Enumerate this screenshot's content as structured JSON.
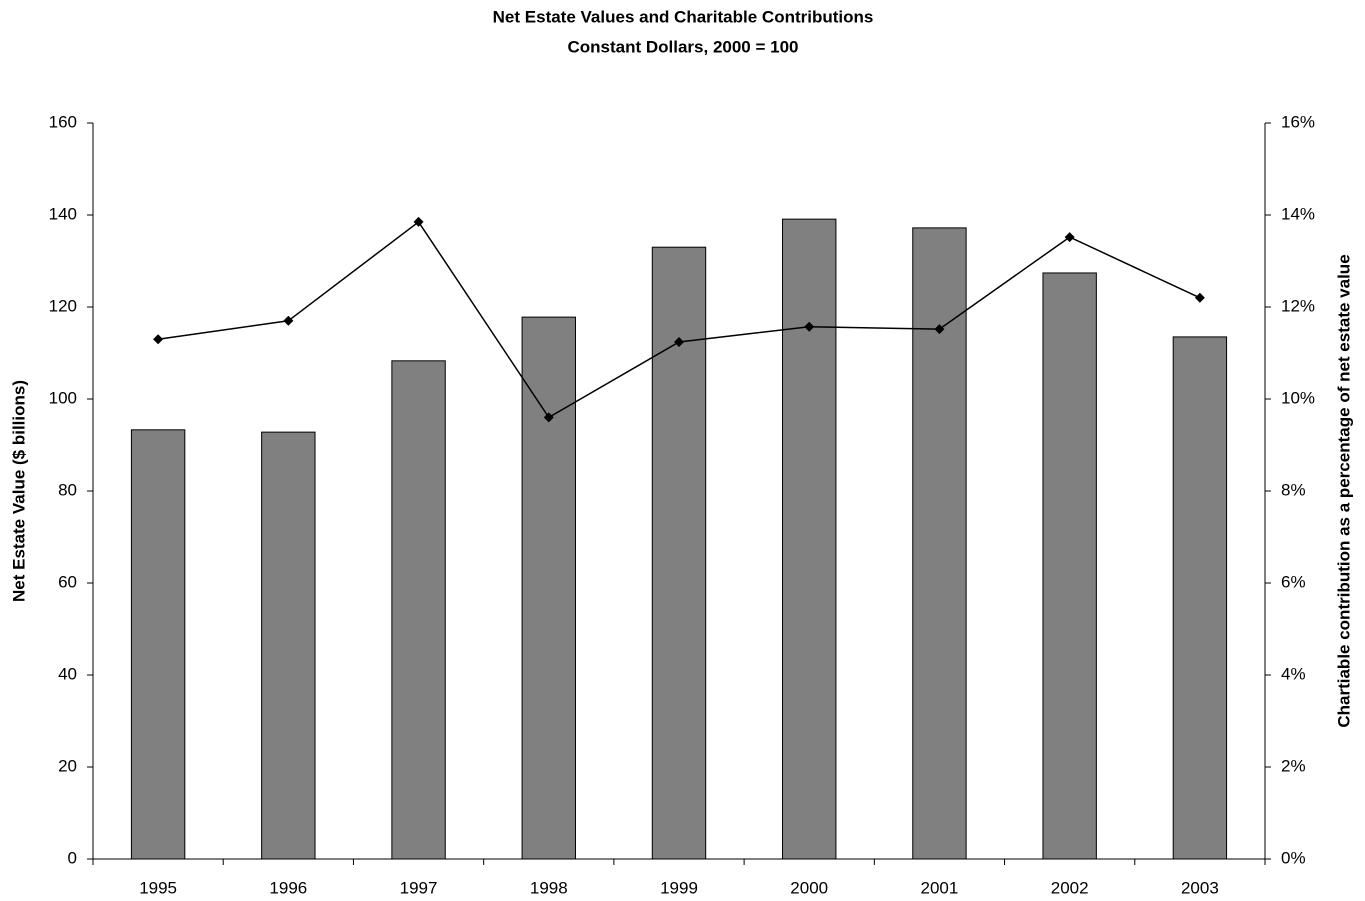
{
  "chart_data": {
    "type": "bar_line",
    "title": "Net Estate Values and Charitable Contributions",
    "subtitle": "Constant Dollars, 2000 = 100",
    "ylabel": "Net Estate Value ($ billions)",
    "y2label": "Chartiable contribution as a percentage of net estate value",
    "categories": [
      "1995",
      "1996",
      "1997",
      "1998",
      "1999",
      "2000",
      "2001",
      "2002",
      "2003"
    ],
    "series": [
      {
        "type": "bar",
        "color": "#808080",
        "values": [
          93.3,
          92.8,
          108.3,
          117.8,
          133.0,
          139.1,
          137.2,
          127.4,
          113.5
        ]
      },
      {
        "type": "line",
        "color": "#000000",
        "axis": "y2",
        "values": [
          11.3,
          11.7,
          13.85,
          9.6,
          11.24,
          11.57,
          11.52,
          13.52,
          12.2
        ]
      }
    ],
    "ylim": [
      0,
      160
    ],
    "yticks": [
      0,
      20,
      40,
      60,
      80,
      100,
      120,
      140,
      160
    ],
    "y2lim": [
      0,
      16
    ],
    "y2ticks": [
      {
        "value": 0,
        "label": "0%"
      },
      {
        "value": 2,
        "label": "2%"
      },
      {
        "value": 4,
        "label": "4%"
      },
      {
        "value": 6,
        "label": "6%"
      },
      {
        "value": 8,
        "label": "8%"
      },
      {
        "value": 10,
        "label": "10%"
      },
      {
        "value": 12,
        "label": "12%"
      },
      {
        "value": 14,
        "label": "14%"
      },
      {
        "value": 16,
        "label": "16%"
      }
    ],
    "grid": false
  }
}
